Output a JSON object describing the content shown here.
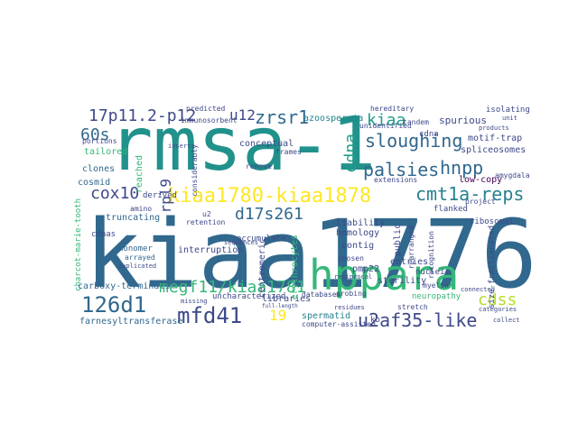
{
  "cloud": {
    "words": [
      {
        "text": "rmsa-1",
        "color": "#21918c"
      },
      {
        "text": "kiaa1776",
        "color": "#31688e"
      },
      {
        "text": "hppara",
        "color": "#35b779"
      },
      {
        "text": "kiaa1780-kiaa1878",
        "color": "#fde725"
      },
      {
        "text": "cmt1a-reps",
        "color": "#26828e"
      },
      {
        "text": "mfd41",
        "color": "#3e4989"
      },
      {
        "text": "126d1",
        "color": "#31688e"
      },
      {
        "text": "megf11/kiaa1781",
        "color": "#35b779"
      },
      {
        "text": "u2af35-like",
        "color": "#3e4989"
      },
      {
        "text": "17p11.2-p12",
        "color": "#3e4989"
      },
      {
        "text": "zrsr1",
        "color": "#31688e"
      },
      {
        "text": "u12",
        "color": "#3e4989"
      },
      {
        "text": "sloughing",
        "color": "#31688e"
      },
      {
        "text": "palsies",
        "color": "#31688e"
      },
      {
        "text": "hnpp",
        "color": "#31688e"
      },
      {
        "text": "cox10",
        "color": "#3e4989"
      },
      {
        "text": "60s",
        "color": "#31688e"
      },
      {
        "text": "rpl9",
        "color": "#3e4989"
      },
      {
        "text": "d17s261",
        "color": "#31688e"
      },
      {
        "text": "cdss",
        "color": "#b5de2b"
      },
      {
        "text": "edna",
        "color": "#1f9e89"
      },
      {
        "text": "kiaa",
        "color": "#1f9e89"
      },
      {
        "text": "19",
        "color": "#fde725"
      },
      {
        "text": "azoospermia",
        "color": "#26828e"
      },
      {
        "text": "conceptual",
        "color": "#3e4989"
      },
      {
        "text": "low-copy",
        "color": "#440154"
      },
      {
        "text": "spurious",
        "color": "#3e4989"
      },
      {
        "text": "motif-trap",
        "color": "#3e4989"
      },
      {
        "text": "spliceosomes",
        "color": "#3e4989"
      },
      {
        "text": "tailored",
        "color": "#35b779"
      },
      {
        "text": "clones",
        "color": "#31688e"
      },
      {
        "text": "cosmid",
        "color": "#31688e"
      },
      {
        "text": "charcot-marie-tooth",
        "color": "#35b779"
      },
      {
        "text": "truncating",
        "color": "#31688e"
      },
      {
        "text": "cdnas",
        "color": "#3e4989"
      },
      {
        "text": "monomer",
        "color": "#31688e"
      },
      {
        "text": "arrayed",
        "color": "#31688e"
      },
      {
        "text": "carboxy-terminals",
        "color": "#31688e"
      },
      {
        "text": "farnesyltransferase",
        "color": "#31688e"
      },
      {
        "text": "interruption",
        "color": "#3e4989"
      },
      {
        "text": "uncharacterized",
        "color": "#3e4989"
      },
      {
        "text": "libraries",
        "color": "#3e4989"
      },
      {
        "text": "spermatid",
        "color": "#26828e"
      },
      {
        "text": "computer-assisted",
        "color": "#3e4989"
      },
      {
        "text": "contig",
        "color": "#3e4989"
      },
      {
        "text": "homology",
        "color": "#3e4989"
      },
      {
        "text": "liability",
        "color": "#3e4989"
      },
      {
        "text": "public",
        "color": "#3e4989"
      },
      {
        "text": "pmp22",
        "color": "#3e4989"
      },
      {
        "text": "entries",
        "color": "#3e4989"
      },
      {
        "text": "sterility",
        "color": "#3e4989"
      },
      {
        "text": "erythrocytes",
        "color": "#35b779"
      },
      {
        "text": "flanked",
        "color": "#3e4989"
      },
      {
        "text": "ribosomal",
        "color": "#3e4989"
      },
      {
        "text": "neuropathy",
        "color": "#35b779"
      },
      {
        "text": "isolating",
        "color": "#3e4989"
      },
      {
        "text": "hereditary",
        "color": "#3e4989"
      },
      {
        "text": "databases",
        "color": "#3e4989"
      },
      {
        "text": "accumulate",
        "color": "#3e4989"
      },
      {
        "text": "frames",
        "color": "#3e4989"
      },
      {
        "text": "remove",
        "color": "#3e4989"
      },
      {
        "text": "derived",
        "color": "#3e4989"
      },
      {
        "text": "predicted",
        "color": "#3e4989"
      },
      {
        "text": "immunosorbent",
        "color": "#3e4989"
      },
      {
        "text": "portions",
        "color": "#3e4989"
      },
      {
        "text": "unidentified",
        "color": "#3e4989"
      },
      {
        "text": "extensions",
        "color": "#3e4989"
      },
      {
        "text": "cdna",
        "color": "#3e4989"
      },
      {
        "text": "tandem",
        "color": "#3e4989"
      },
      {
        "text": "amino",
        "color": "#3e4989"
      },
      {
        "text": "retention",
        "color": "#3e4989"
      },
      {
        "text": "chosen",
        "color": "#3e4989"
      },
      {
        "text": "probing",
        "color": "#3e4989"
      },
      {
        "text": "nucleic",
        "color": "#3e4989"
      },
      {
        "text": "stretch",
        "color": "#3e4989"
      },
      {
        "text": "connected",
        "color": "#3e4989"
      },
      {
        "text": "categories",
        "color": "#3e4989"
      },
      {
        "text": "collect",
        "color": "#3e4989"
      },
      {
        "text": "reciprocal",
        "color": "#3e4989"
      },
      {
        "text": "centromeric",
        "color": "#3e4989"
      },
      {
        "text": "size-fractionated",
        "color": "#3e4989"
      },
      {
        "text": "sequences",
        "color": "#3e4989"
      },
      {
        "text": "residues",
        "color": "#3e4989"
      },
      {
        "text": "missing",
        "color": "#3e4989"
      },
      {
        "text": "duplicated",
        "color": "#3e4989"
      },
      {
        "text": "reached",
        "color": "#35b779"
      },
      {
        "text": "inserts",
        "color": "#3e4989"
      },
      {
        "text": "considerably",
        "color": "#3e4989"
      },
      {
        "text": "unit",
        "color": "#3e4989"
      },
      {
        "text": "amygdala",
        "color": "#3e4989"
      },
      {
        "text": "products",
        "color": "#3e4989"
      },
      {
        "text": "project",
        "color": "#3e4989"
      },
      {
        "text": "kb",
        "color": "#3e4989"
      },
      {
        "text": "u2",
        "color": "#3e4989"
      },
      {
        "text": "rearranged",
        "color": "#3e4989"
      },
      {
        "text": "full-length",
        "color": "#3e4989"
      },
      {
        "text": "myelin",
        "color": "#3e4989"
      },
      {
        "text": "recognition",
        "color": "#3e4989"
      }
    ]
  }
}
